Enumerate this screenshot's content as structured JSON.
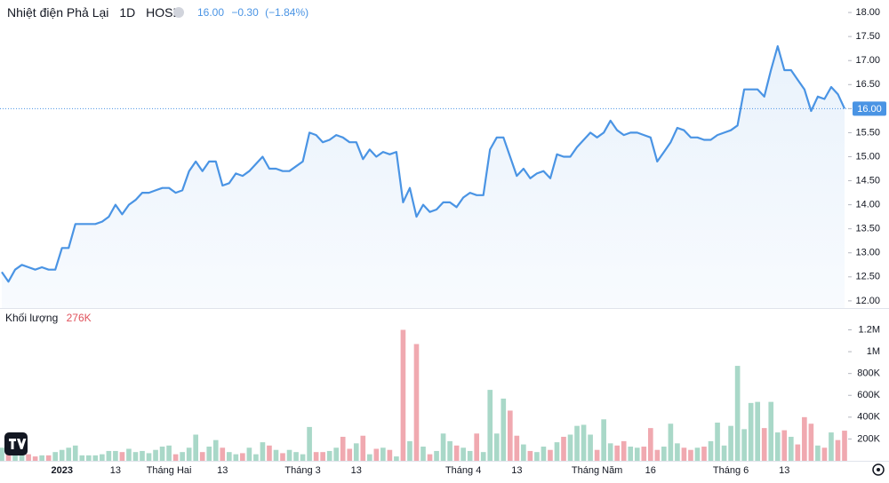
{
  "chart_data": [
    {
      "type": "line",
      "title": "Nhiệt điện Phả Lại",
      "interval": "1D",
      "exchange": "HOSE",
      "last": "16.00",
      "change": "−0.30",
      "change_pct": "(−1.84%)",
      "series": [
        {
          "color": "#4a94e4",
          "values": [
            12.6,
            12.4,
            12.65,
            12.75,
            12.7,
            12.65,
            12.7,
            12.65,
            12.65,
            13.1,
            13.1,
            13.6,
            13.6,
            13.6,
            13.6,
            13.65,
            13.75,
            14.0,
            13.8,
            14.0,
            14.1,
            14.25,
            14.25,
            14.3,
            14.35,
            14.35,
            14.25,
            14.3,
            14.7,
            14.9,
            14.7,
            14.9,
            14.9,
            14.4,
            14.45,
            14.65,
            14.6,
            14.7,
            14.85,
            15.0,
            14.75,
            14.75,
            14.7,
            14.7,
            14.8,
            14.9,
            15.5,
            15.45,
            15.3,
            15.35,
            15.45,
            15.4,
            15.3,
            15.3,
            14.95,
            15.15,
            15.0,
            15.1,
            15.05,
            15.1,
            14.05,
            14.35,
            13.75,
            14.0,
            13.85,
            13.9,
            14.05,
            14.05,
            13.95,
            14.15,
            14.25,
            14.2,
            14.2,
            15.15,
            15.4,
            15.4,
            15.0,
            14.6,
            14.75,
            14.55,
            14.65,
            14.7,
            14.55,
            15.05,
            15.0,
            15.0,
            15.2,
            15.35,
            15.5,
            15.4,
            15.5,
            15.75,
            15.55,
            15.45,
            15.5,
            15.5,
            15.45,
            15.4,
            14.9,
            15.1,
            15.3,
            15.6,
            15.55,
            15.4,
            15.4,
            15.35,
            15.35,
            15.45,
            15.5,
            15.55,
            15.65,
            16.4,
            16.4,
            16.4,
            16.25,
            16.8,
            17.3,
            16.8,
            16.8,
            16.6,
            16.4,
            15.95,
            16.25,
            16.2,
            16.45,
            16.3,
            16.0
          ]
        }
      ],
      "ylim": [
        11.85,
        18.26
      ],
      "yticks": [
        {
          "value": 12,
          "label": "12.00"
        },
        {
          "value": 12.5,
          "label": "12.50"
        },
        {
          "value": 13,
          "label": "13.00"
        },
        {
          "value": 13.5,
          "label": "13.50"
        },
        {
          "value": 14,
          "label": "14.00"
        },
        {
          "value": 14.5,
          "label": "14.50"
        },
        {
          "value": 15,
          "label": "15.00"
        },
        {
          "value": 15.5,
          "label": "15.50"
        },
        {
          "value": 16,
          "label": "16.00"
        },
        {
          "value": 16.5,
          "label": "16.50"
        },
        {
          "value": 17,
          "label": "17.00"
        },
        {
          "value": 17.5,
          "label": "17.50"
        },
        {
          "value": 18,
          "label": "18.00"
        }
      ]
    },
    {
      "type": "bar",
      "title": "Khối lượng",
      "last_label": "276K",
      "up_color": "#a9d8c8",
      "down_color": "#f0a9b0",
      "categories": [
        null,
        null,
        null,
        null,
        null,
        null,
        null,
        null,
        null,
        "2023",
        null,
        null,
        null,
        null,
        null,
        null,
        null,
        "13",
        null,
        null,
        null,
        null,
        null,
        null,
        null,
        "Tháng Hai",
        null,
        null,
        null,
        null,
        null,
        null,
        null,
        "13",
        null,
        null,
        null,
        null,
        null,
        null,
        null,
        null,
        null,
        null,
        null,
        "Tháng 3",
        null,
        null,
        null,
        null,
        null,
        null,
        null,
        "13",
        null,
        null,
        null,
        null,
        null,
        null,
        null,
        null,
        null,
        null,
        null,
        null,
        null,
        null,
        null,
        "Tháng 4",
        null,
        null,
        null,
        null,
        null,
        null,
        null,
        "13",
        null,
        null,
        null,
        null,
        null,
        null,
        null,
        null,
        null,
        null,
        null,
        "Tháng Năm",
        null,
        null,
        null,
        null,
        null,
        null,
        null,
        "16",
        null,
        null,
        null,
        null,
        null,
        null,
        null,
        null,
        null,
        null,
        null,
        "Tháng 6",
        null,
        null,
        null,
        null,
        null,
        null,
        null,
        "13",
        null,
        null,
        null,
        null,
        null,
        null,
        null,
        null,
        null
      ],
      "values": [
        120000,
        80000,
        60000,
        50000,
        60000,
        40000,
        50000,
        50000,
        80000,
        100000,
        120000,
        140000,
        50000,
        50000,
        50000,
        60000,
        90000,
        90000,
        80000,
        110000,
        80000,
        90000,
        70000,
        100000,
        130000,
        140000,
        60000,
        80000,
        120000,
        240000,
        80000,
        130000,
        190000,
        120000,
        80000,
        60000,
        70000,
        120000,
        60000,
        170000,
        140000,
        100000,
        70000,
        100000,
        80000,
        60000,
        310000,
        80000,
        80000,
        90000,
        120000,
        220000,
        110000,
        160000,
        230000,
        60000,
        110000,
        120000,
        100000,
        40000,
        1200000,
        180000,
        1070000,
        130000,
        60000,
        90000,
        250000,
        180000,
        140000,
        120000,
        90000,
        250000,
        80000,
        650000,
        250000,
        570000,
        460000,
        230000,
        150000,
        90000,
        80000,
        130000,
        100000,
        170000,
        220000,
        240000,
        320000,
        330000,
        240000,
        100000,
        380000,
        160000,
        140000,
        180000,
        130000,
        120000,
        130000,
        300000,
        100000,
        130000,
        340000,
        160000,
        120000,
        100000,
        120000,
        130000,
        180000,
        350000,
        140000,
        320000,
        870000,
        290000,
        530000,
        540000,
        300000,
        540000,
        260000,
        280000,
        220000,
        150000,
        400000,
        340000,
        140000,
        120000,
        260000,
        190000,
        276000
      ],
      "ylim": [
        0,
        1375000
      ],
      "yticks": [
        {
          "value": 200000,
          "label": "200K"
        },
        {
          "value": 400000,
          "label": "400K"
        },
        {
          "value": 600000,
          "label": "600K"
        },
        {
          "value": 800000,
          "label": "800K"
        },
        {
          "value": 1000000,
          "label": "1M"
        },
        {
          "value": 1200000,
          "label": "1.2M"
        }
      ]
    }
  ]
}
